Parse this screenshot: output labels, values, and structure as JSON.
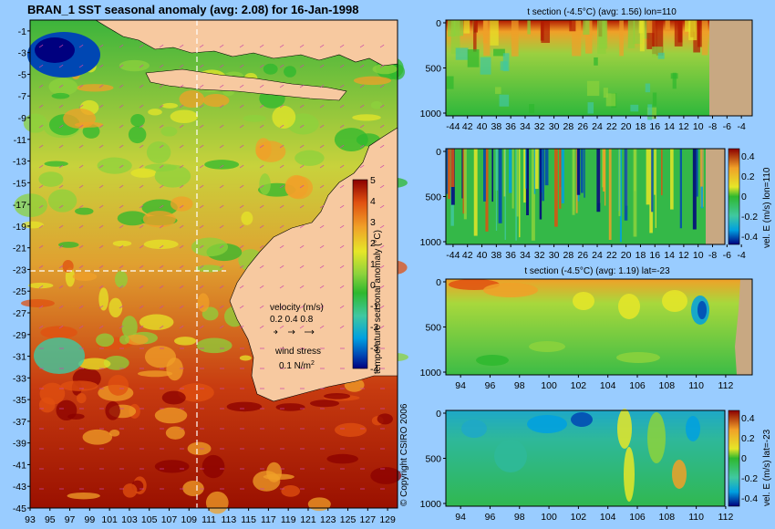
{
  "main_title": "BRAN_1 SST seasonal anomaly (avg: 2.08) for 16-Jan-1998",
  "colors": {
    "background": "#99ccff",
    "land": "#f7c9a0",
    "panel_land": "#c8a882",
    "crosshair": "#ffffff",
    "arrows": "#cc44aa",
    "anomaly_scale": [
      "#00007f",
      "#0047b3",
      "#00a0e0",
      "#40c8a0",
      "#2eb82e",
      "#8cd23c",
      "#e6e628",
      "#f0a028",
      "#e05010",
      "#8b0000"
    ]
  },
  "map": {
    "y_ticks": [
      "-1",
      "-3",
      "-5",
      "-7",
      "-9",
      "-11",
      "-13",
      "-15",
      "-17",
      "-19",
      "-21",
      "-23",
      "-25",
      "-27",
      "-29",
      "-31",
      "-33",
      "-35",
      "-37",
      "-39",
      "-41",
      "-43",
      "-45"
    ],
    "x_ticks": [
      "93",
      "95",
      "97",
      "99",
      "101",
      "103",
      "105",
      "107",
      "109",
      "111",
      "113",
      "115",
      "117",
      "119",
      "121",
      "123",
      "125",
      "127",
      "129"
    ],
    "colorbar_label": "temperature seasonal anomaly (°C)",
    "colorbar_ticks": [
      "5",
      "4",
      "3",
      "2",
      "1",
      "0",
      "-1",
      "-2",
      "-3",
      "-4"
    ],
    "velocity_label": "velocity (m/s)",
    "velocity_ticks": "0.2 0.4 0.8",
    "wind_label": "wind stress",
    "wind_value": "0.1 N/m",
    "wind_unit_sup": "2",
    "copyright": "© Copyright CSIRO 2006"
  },
  "chart_data": [
    {
      "type": "heatmap",
      "title": "BRAN_1 SST seasonal anomaly (avg: 2.08) for 16-Jan-1998",
      "x_ticks": [
        93,
        95,
        97,
        99,
        101,
        103,
        105,
        107,
        109,
        111,
        113,
        115,
        117,
        119,
        121,
        123,
        125,
        127,
        129
      ],
      "y_ticks": [
        -1,
        -3,
        -5,
        -7,
        -9,
        -11,
        -13,
        -15,
        -17,
        -19,
        -21,
        -23,
        -25,
        -27,
        -29,
        -31,
        -33,
        -35,
        -37,
        -39,
        -41,
        -43,
        -45
      ],
      "xlim": [
        93,
        130
      ],
      "ylim": [
        -45,
        0
      ],
      "colorbar_label": "temperature seasonal anomaly (°C)",
      "colorbar_range": [
        -4,
        5
      ],
      "crosshair": {
        "lon": 110,
        "lat": -23
      }
    },
    {
      "type": "heatmap",
      "title": "t section (-4.5°C) (avg: 1.56) lon=110",
      "x_ticks": [
        "-44",
        "42",
        "40",
        "38",
        "36",
        "34",
        "32",
        "30",
        "28",
        "26",
        "24",
        "22",
        "20",
        "18",
        "16",
        "14",
        "12",
        "10",
        "-8",
        "-6",
        "-4"
      ],
      "y_ticks": [
        0,
        500,
        1000
      ],
      "xlim": [
        -45,
        -2.5
      ],
      "ylim": [
        1000,
        0
      ]
    },
    {
      "type": "heatmap",
      "title": "",
      "x_ticks": [
        "-44",
        "42",
        "40",
        "38",
        "36",
        "34",
        "32",
        "30",
        "28",
        "26",
        "24",
        "22",
        "20",
        "18",
        "16",
        "14",
        "12",
        "10",
        "-8",
        "-6",
        "-4"
      ],
      "y_ticks": [
        0,
        500,
        1000
      ],
      "xlim": [
        -45,
        -2.5
      ],
      "ylim": [
        1000,
        0
      ],
      "colorbar_label": "vel. E (m/s) lon=110",
      "colorbar_ticks": [
        "0.4",
        "0.2",
        "0",
        "-0.2",
        "-0.4"
      ]
    },
    {
      "type": "heatmap",
      "title": "t section (-4.5°C) (avg: 1.19) lat=-23",
      "x_ticks": [
        94,
        96,
        98,
        100,
        102,
        104,
        106,
        108,
        110,
        112
      ],
      "y_ticks": [
        0,
        500,
        1000
      ],
      "xlim": [
        93,
        113.8
      ],
      "ylim": [
        1000,
        0
      ]
    },
    {
      "type": "heatmap",
      "title": "",
      "x_ticks": [
        94,
        96,
        98,
        100,
        102,
        104,
        106,
        108,
        110,
        112
      ],
      "y_ticks": [
        0,
        500,
        1000
      ],
      "xlim": [
        93,
        113.8
      ],
      "ylim": [
        1000,
        0
      ],
      "colorbar_label": "vel. E (m/s) lat=-23",
      "colorbar_ticks": [
        "0.4",
        "0.2",
        "0",
        "-0.2",
        "-0.4"
      ]
    }
  ],
  "panels": {
    "p1_title": "t section (-4.5°C) (avg: 1.56) lon=110",
    "p3_title": "t section (-4.5°C) (avg: 1.19) lat=-23",
    "p2_cb_label": "vel. E (m/s) lon=110",
    "p4_cb_label": "vel. E (m/s) lat=-23",
    "cb_ticks": [
      "0.4",
      "0.2",
      "0",
      "-0.2",
      "-0.4"
    ]
  }
}
